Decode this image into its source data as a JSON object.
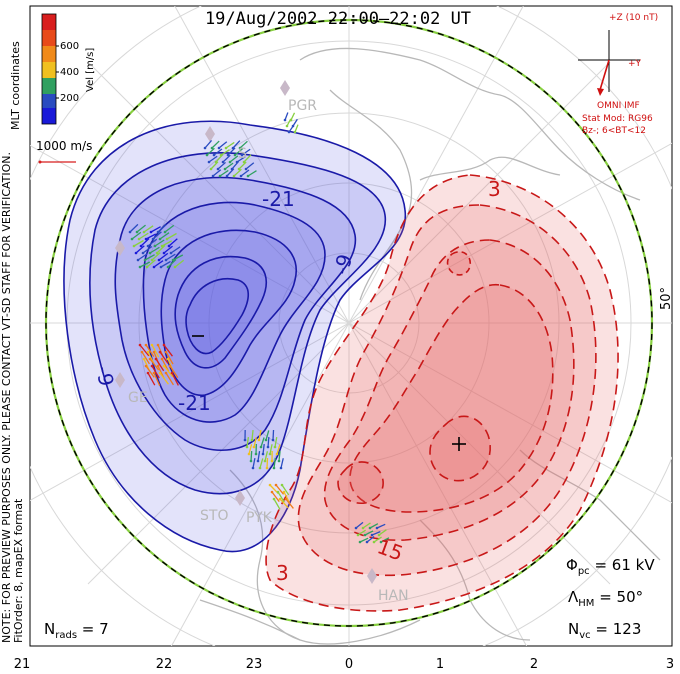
{
  "title": "19/Aug/2002 22:00–22:02 UT",
  "legend": {
    "unit_label": "Vel [m/s]",
    "ticks": [
      "600",
      "400",
      "200"
    ],
    "colors": [
      "#d81e1e",
      "#f07a1a",
      "#f0c020",
      "#88d040",
      "#30a060",
      "#2a4cc0",
      "#1a1ad8"
    ]
  },
  "vector_scale": "1000 m/s",
  "mlt_label": "MLT coordinates",
  "note_line1": "NOTE: FOR PREVIEW PURPOSES ONLY. PLEASE CONTACT VT-SD STAFF FOR VERIFICATION.",
  "note_line2": "FitOrder: 8, mapEX format",
  "imf": {
    "z_label": "+Z (10 nT)",
    "y_label": "+Y",
    "source": "OMNI IMF",
    "model_line1": "Stat Mod: RG96",
    "model_line2": "Bz-; 6<BT<12"
  },
  "latitude_label": "50°",
  "stations": [
    "PGR",
    "S",
    "GE",
    "STO",
    "PYK",
    "HAN"
  ],
  "contours": {
    "negative": [
      "-21",
      "-9",
      "-9",
      "-21",
      "-"
    ],
    "positive": [
      "3",
      "3",
      "15",
      "+"
    ]
  },
  "stats": {
    "phi_pc": "61 kV",
    "lambda_hm": "50°",
    "n_vc": "123",
    "n_rads": "7"
  },
  "mlt_ticks": [
    "21",
    "22",
    "23",
    "0",
    "1",
    "2",
    "3"
  ],
  "colors": {
    "negative_fill": "#5a5ae0",
    "positive_fill": "#e86a6a",
    "negative_line": "#1a1aa8",
    "positive_line": "#c81818",
    "boundary": "#88d040"
  }
}
